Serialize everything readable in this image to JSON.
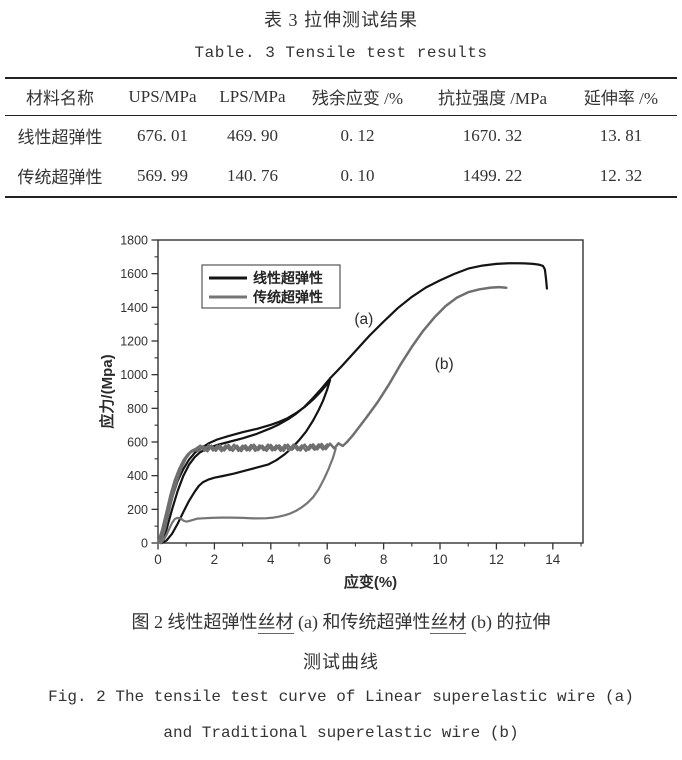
{
  "table": {
    "title_zh": "表 3  拉伸测试结果",
    "title_en": "Table. 3  Tensile test results",
    "columns": [
      "材料名称",
      "UPS/MPa",
      "LPS/MPa",
      "残余应变 /%",
      "抗拉强度 /MPa",
      "延伸率 /%"
    ],
    "rows": [
      {
        "cells": [
          "线性超弹性",
          "676. 01",
          "469. 90",
          "0. 12",
          "1670. 32",
          "13. 81"
        ]
      },
      {
        "cells": [
          "传统超弹性",
          "569. 99",
          "140. 76",
          "0. 10",
          "1499. 22",
          "12. 32"
        ]
      }
    ]
  },
  "caption": {
    "zh_segments": [
      "图 2  线性超弹性",
      "丝材",
      " (a) 和传统超弹性",
      "丝材",
      " (b) 的拉伸"
    ],
    "zh_line2": "测试曲线",
    "en_line1": "Fig. 2  The tensile test curve of Linear superelastic wire (a)",
    "en_line2": "and Traditional superelastic wire (b)"
  },
  "chart_data": {
    "type": "line",
    "title": "",
    "xlabel": "应变(%)",
    "ylabel": "应力/(Mpa)",
    "xlim": [
      0,
      15.07
    ],
    "ylim": [
      0,
      1800
    ],
    "x_major_ticks": [
      0,
      2,
      4,
      6,
      8,
      10,
      12,
      14
    ],
    "x_minor_ticks": [
      1,
      3,
      5,
      7,
      9,
      11,
      13,
      15
    ],
    "y_major_step": 200,
    "y_minor_step": 100,
    "grid": false,
    "legend": {
      "position": "upper-left",
      "entries": [
        {
          "label": "线性超弹性",
          "color": "#141414"
        },
        {
          "label": "传统超弹性",
          "color": "#757575"
        }
      ]
    },
    "annotations": [
      {
        "text": "(a)",
        "x": 7.3,
        "y": 1300
      },
      {
        "text": "(b)",
        "x": 10.15,
        "y": 1035
      }
    ],
    "series": [
      {
        "name": "线性超弹性 loading cycle",
        "color": "#141414",
        "width": 2.2,
        "points": [
          [
            0,
            0
          ],
          [
            0.15,
            60
          ],
          [
            0.3,
            150
          ],
          [
            0.5,
            270
          ],
          [
            0.7,
            370
          ],
          [
            0.9,
            440
          ],
          [
            1.1,
            495
          ],
          [
            1.3,
            535
          ],
          [
            1.5,
            560
          ],
          [
            1.8,
            592
          ],
          [
            2.1,
            615
          ],
          [
            2.5,
            635
          ],
          [
            3,
            658
          ],
          [
            3.5,
            678
          ],
          [
            4,
            702
          ],
          [
            4.3,
            720
          ],
          [
            4.6,
            742
          ],
          [
            4.9,
            772
          ],
          [
            5.2,
            808
          ],
          [
            5.5,
            852
          ],
          [
            5.8,
            905
          ],
          [
            6,
            945
          ],
          [
            6.1,
            968
          ]
        ]
      },
      {
        "name": "线性超弹性 unloading",
        "color": "#141414",
        "width": 2.2,
        "points": [
          [
            6.1,
            968
          ],
          [
            6,
            912
          ],
          [
            5.85,
            845
          ],
          [
            5.7,
            790
          ],
          [
            5.5,
            728
          ],
          [
            5.25,
            662
          ],
          [
            5,
            610
          ],
          [
            4.75,
            565
          ],
          [
            4.5,
            528
          ],
          [
            4.2,
            492
          ],
          [
            3.9,
            466
          ],
          [
            3.5,
            448
          ],
          [
            3.1,
            430
          ],
          [
            2.7,
            412
          ],
          [
            2.3,
            398
          ],
          [
            2,
            388
          ],
          [
            1.8,
            378
          ],
          [
            1.6,
            362
          ],
          [
            1.45,
            340
          ],
          [
            1.3,
            305
          ],
          [
            1.1,
            250
          ],
          [
            0.9,
            185
          ],
          [
            0.7,
            115
          ],
          [
            0.5,
            55
          ],
          [
            0.3,
            15
          ],
          [
            0.12,
            0
          ]
        ]
      },
      {
        "name": "线性超弹性 pull to fracture",
        "color": "#141414",
        "width": 2.2,
        "points": [
          [
            0.12,
            0
          ],
          [
            0.3,
            80
          ],
          [
            0.5,
            200
          ],
          [
            0.7,
            310
          ],
          [
            0.9,
            400
          ],
          [
            1.1,
            465
          ],
          [
            1.3,
            510
          ],
          [
            1.5,
            540
          ],
          [
            1.8,
            565
          ],
          [
            2.1,
            583
          ],
          [
            2.5,
            600
          ],
          [
            3,
            622
          ],
          [
            3.5,
            648
          ],
          [
            4,
            682
          ],
          [
            4.3,
            706
          ],
          [
            4.6,
            734
          ],
          [
            4.9,
            768
          ],
          [
            5.2,
            810
          ],
          [
            5.5,
            862
          ],
          [
            5.8,
            918
          ],
          [
            6.1,
            978
          ],
          [
            6.5,
            1048
          ],
          [
            7,
            1140
          ],
          [
            7.5,
            1232
          ],
          [
            8,
            1315
          ],
          [
            8.5,
            1395
          ],
          [
            9,
            1462
          ],
          [
            9.5,
            1518
          ],
          [
            10,
            1560
          ],
          [
            10.5,
            1598
          ],
          [
            11,
            1630
          ],
          [
            11.5,
            1648
          ],
          [
            12,
            1658
          ],
          [
            12.5,
            1662
          ],
          [
            13,
            1661
          ],
          [
            13.3,
            1658
          ],
          [
            13.5,
            1654
          ],
          [
            13.65,
            1646
          ],
          [
            13.72,
            1625
          ],
          [
            13.76,
            1565
          ],
          [
            13.79,
            1512
          ]
        ]
      },
      {
        "name": "传统超弹性 loading cycle",
        "color": "#6f6f6f",
        "width": 2.5,
        "points": [
          [
            0,
            0
          ],
          [
            0.15,
            80
          ],
          [
            0.3,
            185
          ],
          [
            0.45,
            290
          ],
          [
            0.6,
            375
          ],
          [
            0.75,
            440
          ],
          [
            0.9,
            490
          ],
          [
            1.05,
            525
          ],
          [
            1.2,
            548
          ],
          [
            1.35,
            560
          ],
          [
            1.5,
            578
          ],
          [
            1.65,
            548
          ],
          [
            1.8,
            582
          ],
          [
            1.95,
            550
          ],
          [
            2.1,
            578
          ],
          [
            2.25,
            546
          ],
          [
            2.4,
            580
          ],
          [
            2.55,
            552
          ],
          [
            2.7,
            584
          ],
          [
            2.85,
            548
          ],
          [
            3,
            578
          ],
          [
            3.15,
            550
          ],
          [
            3.3,
            582
          ],
          [
            3.45,
            548
          ],
          [
            3.6,
            580
          ],
          [
            3.75,
            552
          ],
          [
            3.9,
            584
          ],
          [
            4.05,
            550
          ],
          [
            4.2,
            580
          ],
          [
            4.35,
            548
          ],
          [
            4.5,
            582
          ],
          [
            4.65,
            550
          ],
          [
            4.8,
            584
          ],
          [
            4.95,
            552
          ],
          [
            5.1,
            580
          ],
          [
            5.25,
            548
          ],
          [
            5.4,
            582
          ],
          [
            5.55,
            554
          ],
          [
            5.7,
            586
          ],
          [
            5.85,
            556
          ],
          [
            6,
            585
          ]
        ]
      },
      {
        "name": "传统超弹性 unloading",
        "color": "#757575",
        "width": 2.2,
        "points": [
          [
            6.3,
            560
          ],
          [
            6.2,
            505
          ],
          [
            6.05,
            440
          ],
          [
            5.9,
            385
          ],
          [
            5.7,
            320
          ],
          [
            5.5,
            272
          ],
          [
            5.3,
            238
          ],
          [
            5.1,
            212
          ],
          [
            4.9,
            192
          ],
          [
            4.7,
            176
          ],
          [
            4.5,
            165
          ],
          [
            4.3,
            157
          ],
          [
            4.1,
            151
          ],
          [
            3.8,
            147
          ],
          [
            3.4,
            146
          ],
          [
            3,
            149
          ],
          [
            2.6,
            151
          ],
          [
            2.2,
            151
          ],
          [
            1.9,
            149
          ],
          [
            1.6,
            147
          ],
          [
            1.4,
            145
          ],
          [
            1.25,
            138
          ],
          [
            1.1,
            130
          ],
          [
            1,
            127
          ],
          [
            0.9,
            133
          ],
          [
            0.8,
            146
          ],
          [
            0.7,
            150
          ],
          [
            0.6,
            143
          ],
          [
            0.5,
            120
          ],
          [
            0.4,
            85
          ],
          [
            0.3,
            48
          ],
          [
            0.2,
            18
          ],
          [
            0.1,
            0
          ]
        ]
      },
      {
        "name": "传统超弹性 pull to fracture",
        "color": "#6f6f6f",
        "width": 2.5,
        "points": [
          [
            0.1,
            0
          ],
          [
            0.25,
            90
          ],
          [
            0.4,
            200
          ],
          [
            0.55,
            300
          ],
          [
            0.7,
            385
          ],
          [
            0.85,
            455
          ],
          [
            1,
            505
          ],
          [
            1.15,
            538
          ],
          [
            1.3,
            552
          ],
          [
            1.45,
            548
          ],
          [
            1.6,
            575
          ],
          [
            1.75,
            545
          ],
          [
            1.9,
            578
          ],
          [
            2.05,
            548
          ],
          [
            2.2,
            580
          ],
          [
            2.35,
            550
          ],
          [
            2.5,
            582
          ],
          [
            2.65,
            548
          ],
          [
            2.8,
            578
          ],
          [
            2.95,
            546
          ],
          [
            3.1,
            580
          ],
          [
            3.25,
            550
          ],
          [
            3.4,
            584
          ],
          [
            3.55,
            552
          ],
          [
            3.7,
            578
          ],
          [
            3.85,
            548
          ],
          [
            4,
            582
          ],
          [
            4.15,
            552
          ],
          [
            4.3,
            580
          ],
          [
            4.45,
            548
          ],
          [
            4.6,
            584
          ],
          [
            4.75,
            554
          ],
          [
            4.9,
            580
          ],
          [
            5.05,
            550
          ],
          [
            5.2,
            584
          ],
          [
            5.35,
            554
          ],
          [
            5.5,
            586
          ],
          [
            5.65,
            556
          ],
          [
            5.8,
            588
          ],
          [
            5.95,
            558
          ],
          [
            6.1,
            590
          ],
          [
            6.25,
            562
          ],
          [
            6.4,
            592
          ],
          [
            6.55,
            576
          ],
          [
            6.7,
            600
          ],
          [
            6.9,
            638
          ],
          [
            7.1,
            682
          ],
          [
            7.4,
            748
          ],
          [
            7.8,
            840
          ],
          [
            8.2,
            945
          ],
          [
            8.6,
            1060
          ],
          [
            9,
            1165
          ],
          [
            9.4,
            1260
          ],
          [
            9.8,
            1340
          ],
          [
            10.2,
            1408
          ],
          [
            10.6,
            1458
          ],
          [
            11,
            1490
          ],
          [
            11.4,
            1507
          ],
          [
            11.8,
            1517
          ],
          [
            12.1,
            1520
          ],
          [
            12.35,
            1516
          ]
        ]
      }
    ]
  }
}
